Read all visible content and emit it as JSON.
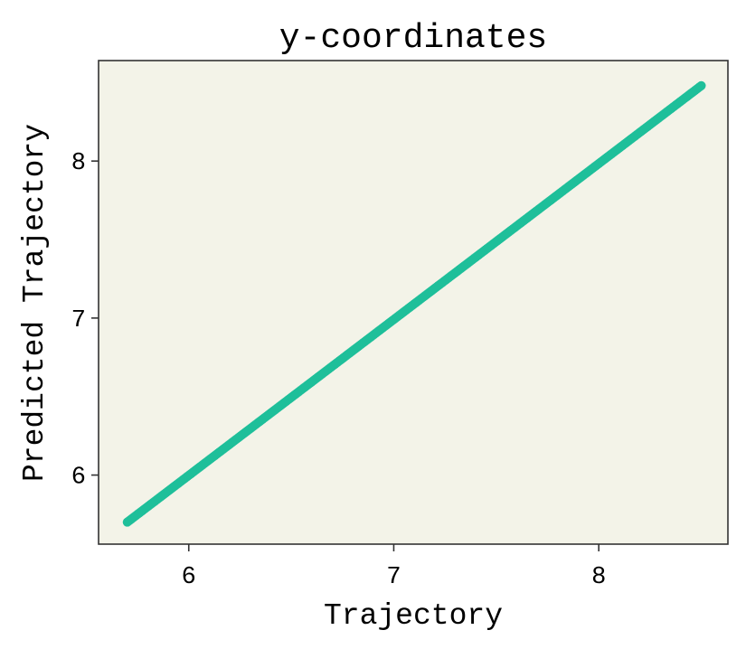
{
  "chart_data": {
    "type": "scatter",
    "title": "y-coordinates",
    "xlabel": "Trajectory",
    "ylabel": "Predicted Trajectory",
    "xlim": [
      5.56,
      8.63
    ],
    "ylim": [
      5.56,
      8.64
    ],
    "xticks": [
      6,
      7,
      8
    ],
    "yticks": [
      6,
      7,
      8
    ],
    "grid": false,
    "legend": "none",
    "x_range": [
      5.7,
      8.5
    ],
    "y_range": [
      5.7,
      8.48
    ],
    "colors": {
      "background": "#f3f3e8",
      "points": "#1fbf9a",
      "frame": "#333333"
    }
  }
}
